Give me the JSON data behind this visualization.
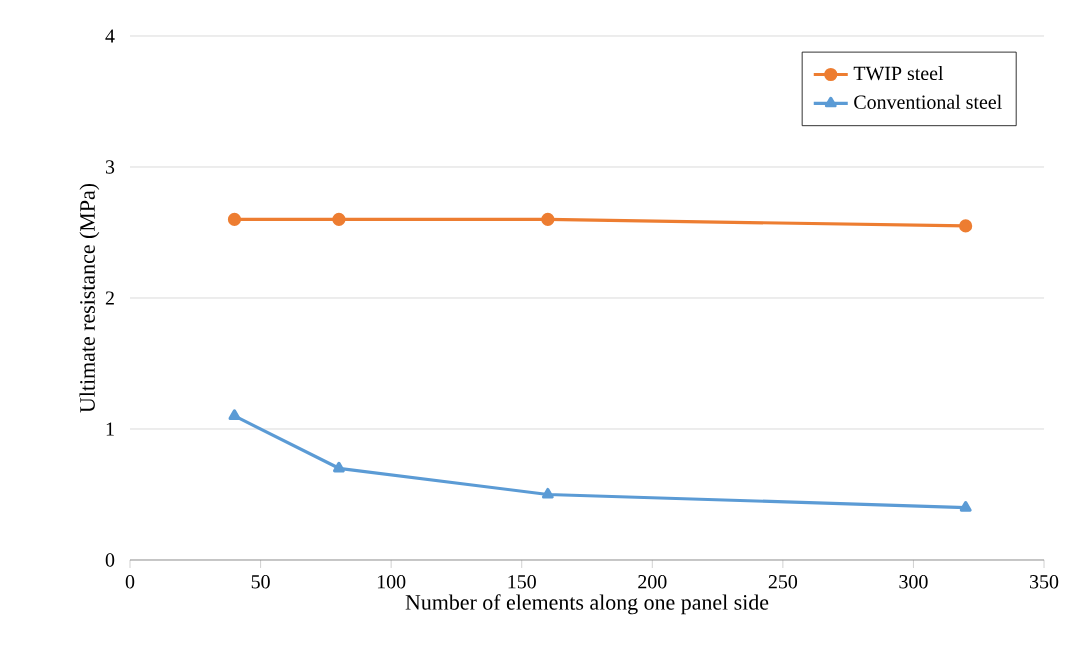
{
  "chart_data": {
    "type": "line",
    "xlabel": "Number of elements along one panel side",
    "ylabel": "Ultimate resistance (MPa)",
    "x": [
      40,
      80,
      160,
      320
    ],
    "series": [
      {
        "name": "TWIP steel",
        "color": "#ed7d31",
        "values": [
          2.6,
          2.6,
          2.6,
          2.55
        ],
        "marker": "circle"
      },
      {
        "name": "Conventional steel",
        "color": "#5b9bd5",
        "values": [
          1.1,
          0.7,
          0.5,
          0.4
        ],
        "marker": "triangle"
      }
    ],
    "xlim": [
      0,
      350
    ],
    "xticks": [
      0,
      50,
      100,
      150,
      200,
      250,
      300,
      350
    ],
    "ylim": [
      0,
      4
    ],
    "yticks": [
      0,
      1,
      2,
      3,
      4
    ],
    "grid": "y",
    "legend": "top right"
  }
}
